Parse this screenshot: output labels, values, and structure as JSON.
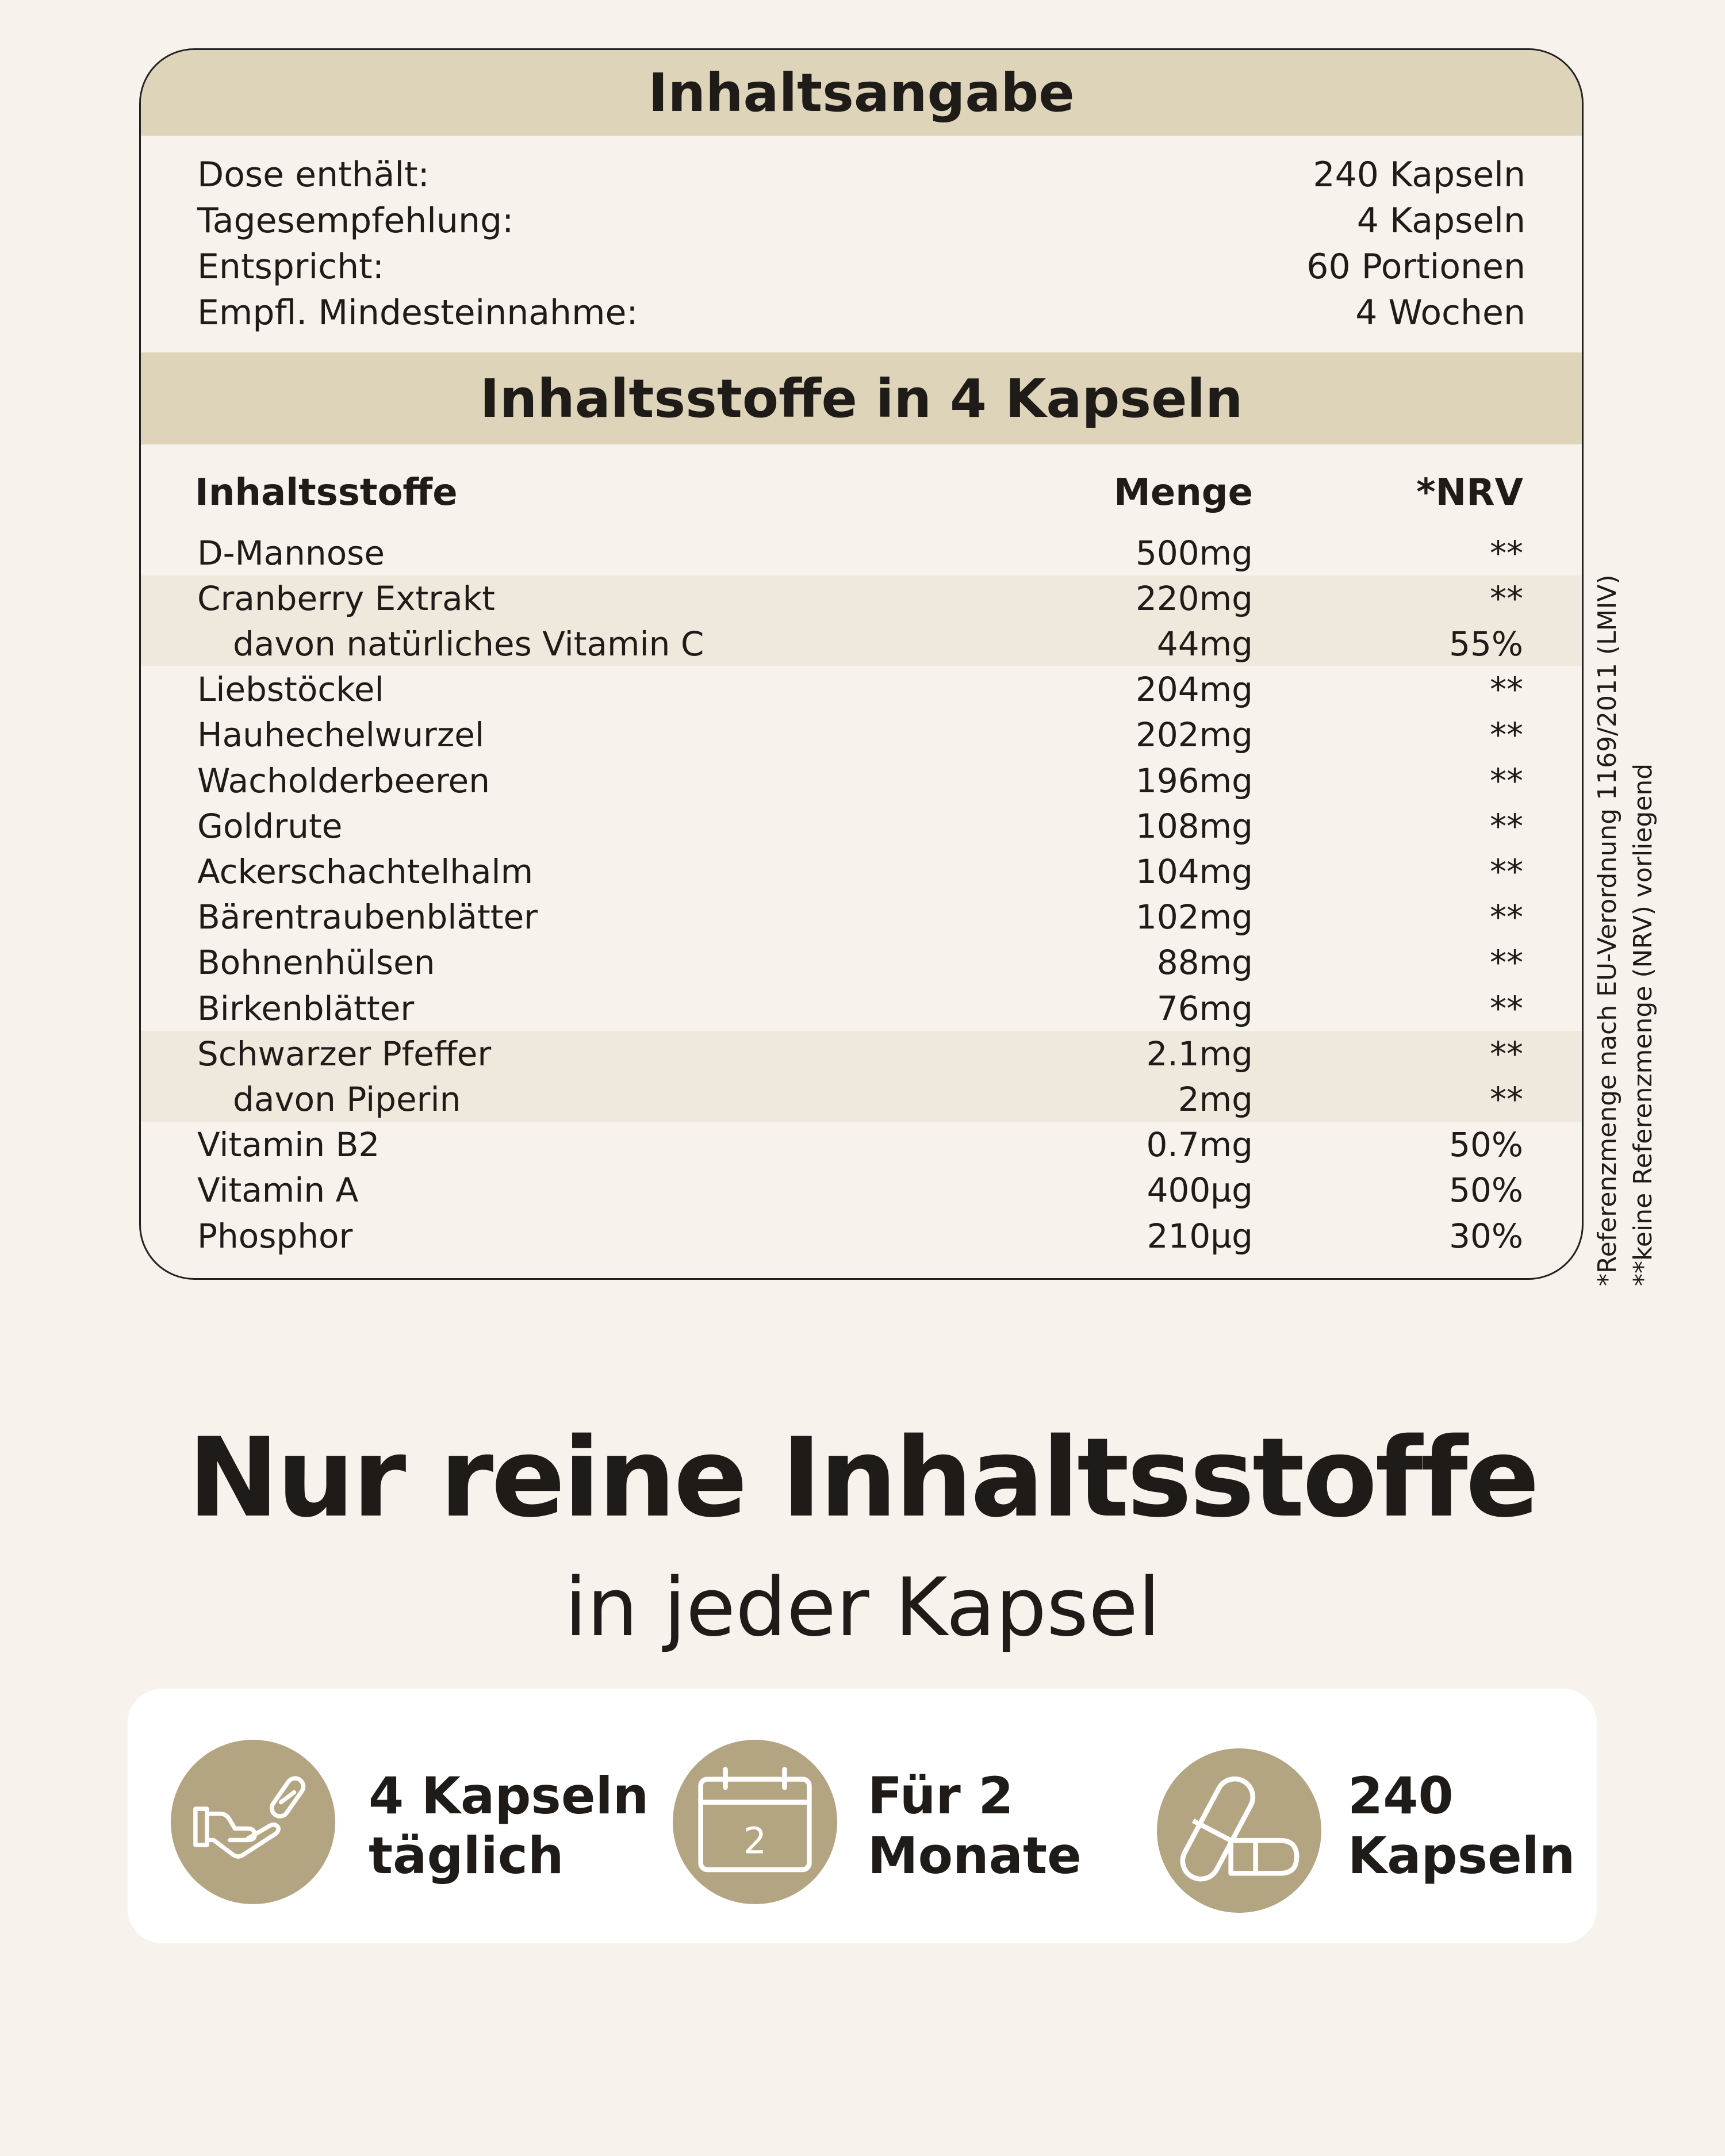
{
  "summary": {
    "title": "Inhaltsangabe",
    "rows": [
      {
        "label": "Dose enthält:",
        "value": "240 Kapseln"
      },
      {
        "label": "Tagesempfehlung:",
        "value": "4 Kapseln"
      },
      {
        "label": "Entspricht:",
        "value": "60 Portionen"
      },
      {
        "label": "Empfl. Mindesteinnahme:",
        "value": "4 Wochen"
      }
    ]
  },
  "ingredients": {
    "title": "Inhaltsstoffe in 4 Kapseln",
    "headers": {
      "name": "Inhaltsstoffe",
      "amount": "Menge",
      "nrv": "*NRV"
    },
    "rows": [
      {
        "name": "D-Mannose",
        "amount": "500mg",
        "nrv": "**"
      },
      {
        "name": "Cranberry Extrakt",
        "amount": "220mg",
        "nrv": "**"
      },
      {
        "name": "davon natürliches Vitamin C",
        "amount": "44mg",
        "nrv": "55%"
      },
      {
        "name": "Liebstöckel",
        "amount": "204mg",
        "nrv": "**"
      },
      {
        "name": "Hauhechelwurzel",
        "amount": "202mg",
        "nrv": "**"
      },
      {
        "name": "Wacholderbeeren",
        "amount": "196mg",
        "nrv": "**"
      },
      {
        "name": "Goldrute",
        "amount": "108mg",
        "nrv": "**"
      },
      {
        "name": "Ackerschachtelhalm",
        "amount": "104mg",
        "nrv": "**"
      },
      {
        "name": "Bärentraubenblätter",
        "amount": "102mg",
        "nrv": "**"
      },
      {
        "name": "Bohnenhülsen",
        "amount": "88mg",
        "nrv": "**"
      },
      {
        "name": "Birkenblätter",
        "amount": "76mg",
        "nrv": "**"
      },
      {
        "name": "Schwarzer Pfeffer",
        "amount": "2.1mg",
        "nrv": "**"
      },
      {
        "name": "davon Piperin",
        "amount": "2mg",
        "nrv": "**"
      },
      {
        "name": "Vitamin B2",
        "amount": "0.7mg",
        "nrv": "50%"
      },
      {
        "name": "Vitamin A",
        "amount": "400µg",
        "nrv": "50%"
      },
      {
        "name": "Phosphor",
        "amount": "210µg",
        "nrv": "30%"
      }
    ]
  },
  "footnotes": {
    "nrv": "*Referenzmenge nach EU-Verordnung 1169/2011 (LMIV)",
    "no_nrv": "**keine Referenzmenge (NRV) vorliegend"
  },
  "promo": {
    "headline": "Nur reine Inhaltsstoffe",
    "subheadline": "in jeder Kapsel"
  },
  "features": [
    {
      "icon": "hand-capsule-icon",
      "line1": "4 Kapseln",
      "line2": "täglich"
    },
    {
      "icon": "calendar-icon",
      "line1": "Für 2",
      "line2": "Monate",
      "calendar_number": "2"
    },
    {
      "icon": "capsules-icon",
      "line1": "240",
      "line2": "Kapseln"
    }
  ],
  "colors": {
    "background": "#f7f3ec",
    "band": "#ded4b9",
    "shaded_row": "#efe9dd",
    "icon_circle": "#b4a582"
  }
}
